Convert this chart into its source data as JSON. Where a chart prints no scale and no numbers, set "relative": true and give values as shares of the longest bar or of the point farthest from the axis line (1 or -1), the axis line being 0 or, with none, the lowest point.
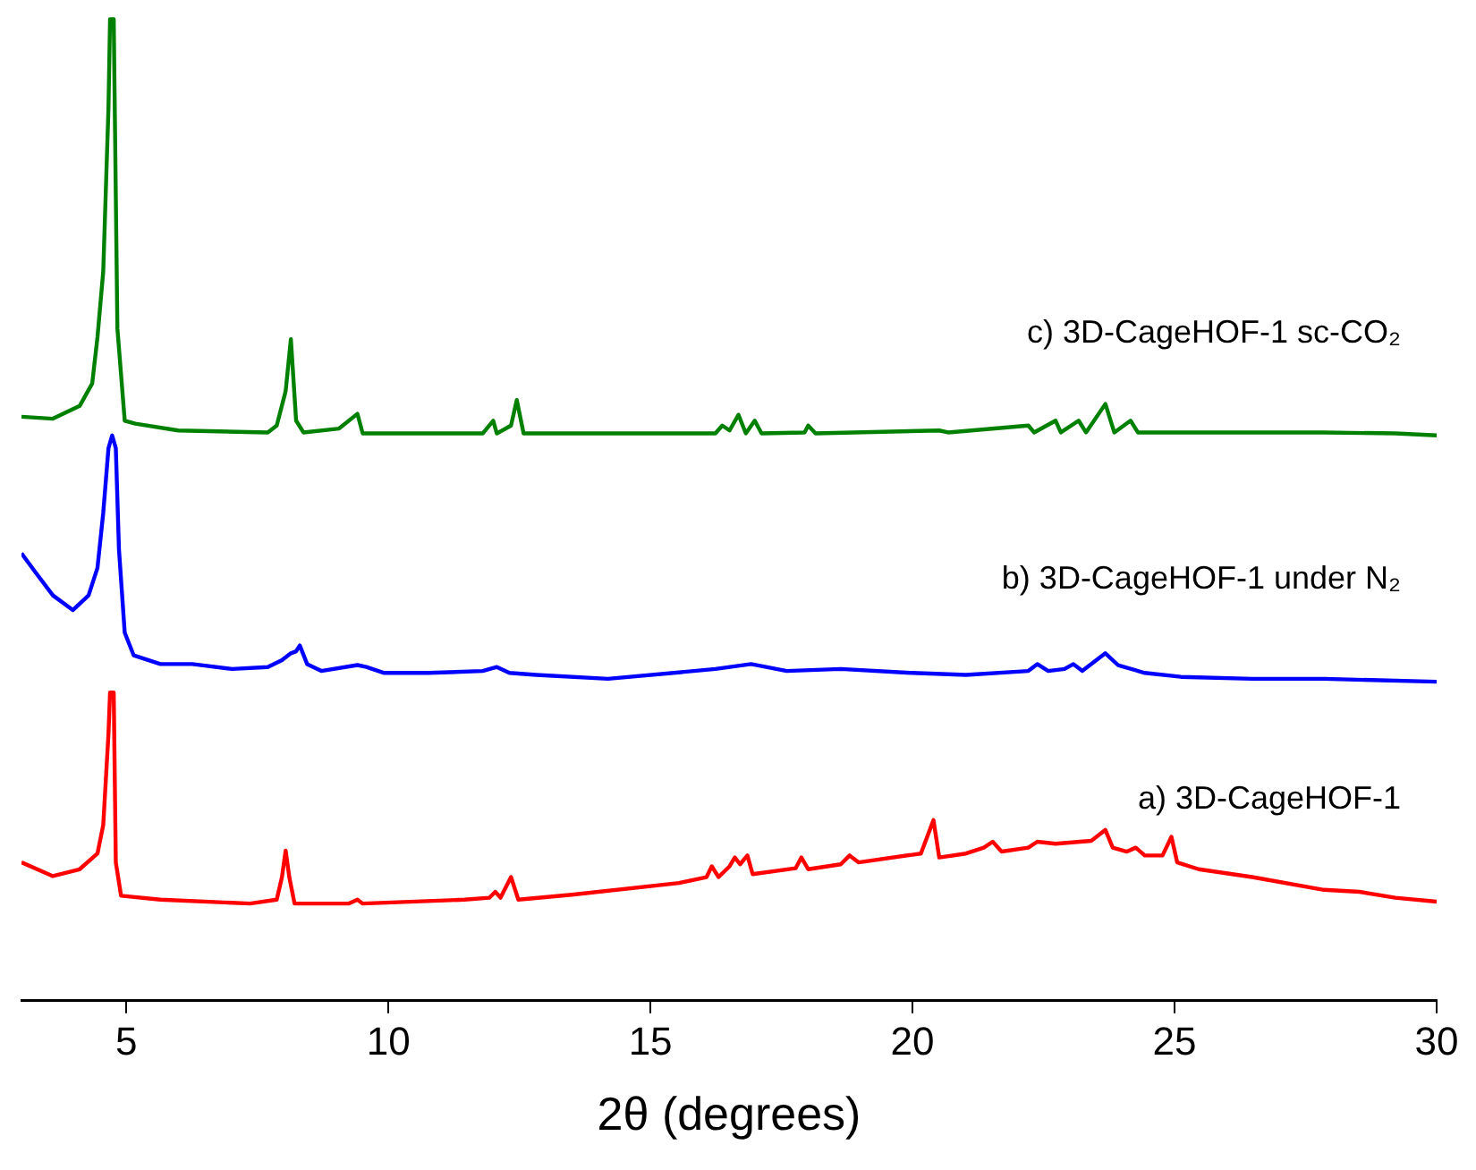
{
  "chart_data": {
    "type": "line",
    "relative": true,
    "xlabel": "2θ (degrees)",
    "xlim": [
      3,
      30
    ],
    "xticks": [
      5,
      10,
      15,
      20,
      25,
      30
    ],
    "legend": false,
    "grid": false,
    "marker": "none",
    "line_style": "solid",
    "series": [
      {
        "name": "a) 3D-CageHOF-1",
        "color": "#ff0000",
        "x": [
          3.0,
          3.6,
          4.11,
          4.45,
          4.56,
          4.66,
          4.69,
          4.76,
          4.8,
          4.9,
          5.65,
          7.36,
          7.87,
          7.97,
          8.04,
          8.11,
          8.21,
          9.24,
          9.41,
          9.51,
          11.45,
          11.93,
          12.04,
          12.14,
          12.34,
          12.48,
          13.5,
          15.55,
          16.07,
          16.17,
          16.3,
          16.51,
          16.61,
          16.71,
          16.85,
          16.95,
          17.77,
          17.88,
          18.01,
          18.63,
          18.8,
          18.97,
          20.16,
          20.4,
          20.51,
          21.02,
          21.36,
          21.53,
          21.7,
          22.21,
          22.38,
          22.73,
          23.41,
          23.68,
          23.82,
          24.09,
          24.26,
          24.43,
          24.77,
          24.94,
          25.05,
          25.46,
          26.48,
          27.85,
          28.53,
          29.21,
          30.0
        ],
        "values": [
          0.141,
          0.127,
          0.134,
          0.15,
          0.179,
          0.272,
          0.314,
          0.314,
          0.141,
          0.107,
          0.103,
          0.099,
          0.103,
          0.126,
          0.153,
          0.126,
          0.099,
          0.099,
          0.103,
          0.099,
          0.103,
          0.105,
          0.111,
          0.105,
          0.126,
          0.103,
          0.108,
          0.12,
          0.126,
          0.137,
          0.126,
          0.137,
          0.146,
          0.139,
          0.148,
          0.129,
          0.135,
          0.146,
          0.134,
          0.139,
          0.148,
          0.141,
          0.15,
          0.184,
          0.146,
          0.15,
          0.156,
          0.162,
          0.152,
          0.156,
          0.162,
          0.16,
          0.163,
          0.174,
          0.156,
          0.152,
          0.156,
          0.148,
          0.148,
          0.167,
          0.141,
          0.134,
          0.126,
          0.113,
          0.111,
          0.105,
          0.101
        ]
      },
      {
        "name": "b) 3D-CageHOF-1 under N₂",
        "color": "#0000ff",
        "x": [
          3.0,
          3.26,
          3.6,
          3.98,
          4.28,
          4.45,
          4.56,
          4.66,
          4.73,
          4.8,
          4.86,
          4.97,
          5.14,
          5.65,
          6.26,
          7.02,
          7.7,
          7.97,
          8.14,
          8.24,
          8.31,
          8.45,
          8.72,
          9.41,
          9.58,
          9.92,
          10.77,
          11.8,
          12.07,
          12.31,
          12.82,
          14.19,
          16.24,
          16.92,
          17.6,
          18.63,
          19.99,
          21.02,
          22.21,
          22.38,
          22.59,
          22.9,
          23.07,
          23.24,
          23.68,
          23.92,
          24.43,
          25.12,
          26.48,
          27.85,
          30.0
        ],
        "values": [
          0.456,
          0.437,
          0.413,
          0.398,
          0.413,
          0.441,
          0.497,
          0.563,
          0.576,
          0.563,
          0.46,
          0.375,
          0.352,
          0.343,
          0.343,
          0.338,
          0.34,
          0.347,
          0.354,
          0.356,
          0.362,
          0.343,
          0.336,
          0.342,
          0.34,
          0.334,
          0.334,
          0.336,
          0.34,
          0.334,
          0.332,
          0.328,
          0.338,
          0.343,
          0.336,
          0.338,
          0.334,
          0.332,
          0.336,
          0.343,
          0.336,
          0.338,
          0.343,
          0.336,
          0.354,
          0.342,
          0.334,
          0.33,
          0.328,
          0.328,
          0.325
        ]
      },
      {
        "name": "c) 3D-CageHOF-1 sc-CO₂",
        "color": "#008000",
        "x": [
          3.0,
          3.6,
          4.11,
          4.35,
          4.45,
          4.56,
          4.66,
          4.69,
          4.76,
          4.83,
          4.97,
          5.17,
          5.99,
          7.7,
          7.87,
          8.04,
          8.14,
          8.24,
          8.38,
          9.06,
          9.41,
          9.51,
          11.8,
          12.0,
          12.07,
          12.34,
          12.45,
          12.58,
          16.24,
          16.37,
          16.51,
          16.68,
          16.82,
          16.99,
          17.12,
          17.94,
          18.01,
          18.15,
          20.51,
          20.68,
          22.21,
          22.32,
          22.73,
          22.83,
          23.17,
          23.31,
          23.68,
          23.85,
          24.16,
          24.3,
          25.12,
          26.48,
          27.85,
          29.21,
          30.0
        ],
        "values": [
          0.595,
          0.593,
          0.606,
          0.629,
          0.676,
          0.743,
          0.91,
          1,
          1,
          0.685,
          0.591,
          0.588,
          0.581,
          0.579,
          0.586,
          0.621,
          0.674,
          0.591,
          0.579,
          0.583,
          0.598,
          0.578,
          0.578,
          0.591,
          0.578,
          0.586,
          0.612,
          0.578,
          0.578,
          0.586,
          0.581,
          0.597,
          0.578,
          0.591,
          0.578,
          0.579,
          0.586,
          0.578,
          0.581,
          0.579,
          0.586,
          0.579,
          0.591,
          0.579,
          0.591,
          0.579,
          0.608,
          0.579,
          0.591,
          0.579,
          0.579,
          0.579,
          0.579,
          0.578,
          0.576
        ]
      }
    ]
  }
}
